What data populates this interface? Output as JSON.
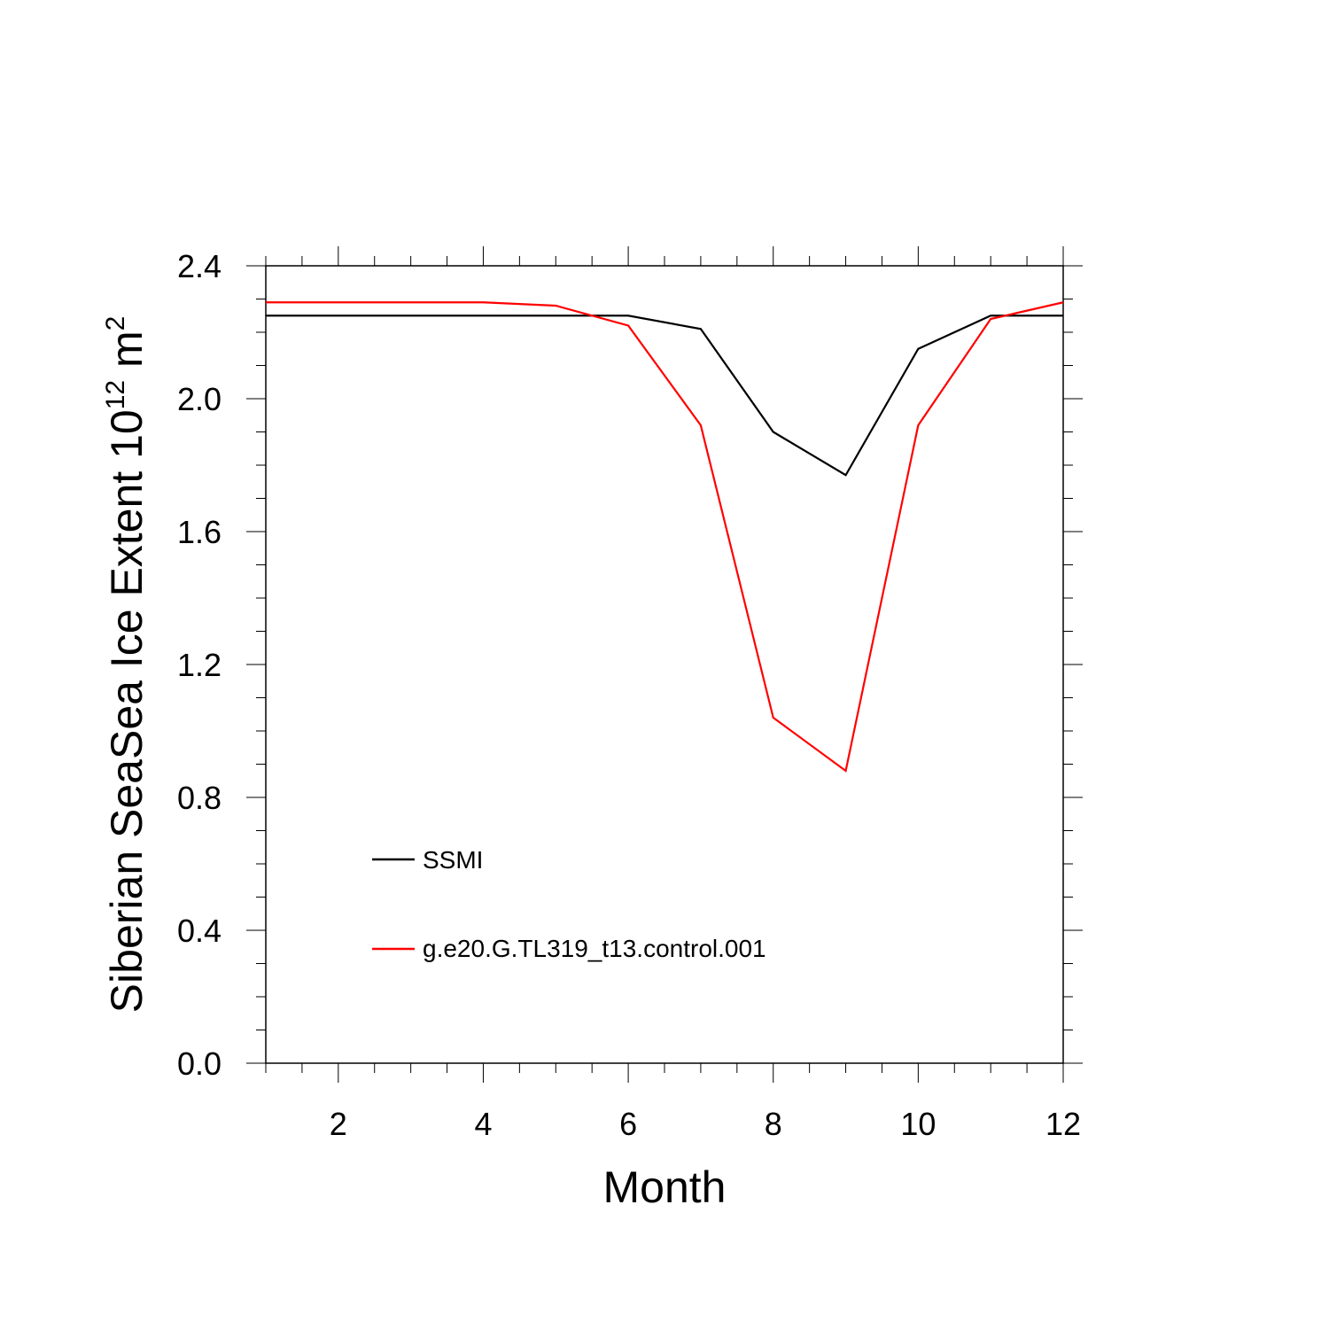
{
  "chart_data": {
    "type": "line",
    "xlabel": "Month",
    "ylabel": {
      "text": "Siberian SeaSea Ice Extent 10",
      "superscript": "12",
      "unit": " m",
      "unit_superscript": "2"
    },
    "xlim": [
      1,
      12
    ],
    "ylim": [
      0.0,
      2.4
    ],
    "xticks": [
      2,
      4,
      6,
      8,
      10,
      12
    ],
    "xtick_labels": [
      "2",
      "4",
      "6",
      "8",
      "10",
      "12"
    ],
    "yticks": [
      0.0,
      0.4,
      0.8,
      1.2,
      1.6,
      2.0,
      2.4
    ],
    "ytick_labels": [
      "0.0",
      "0.4",
      "0.8",
      "1.2",
      "1.6",
      "2.0",
      "2.4"
    ],
    "grid": false,
    "legend_position": "lower-left inside plot",
    "x": [
      1,
      2,
      3,
      4,
      5,
      6,
      7,
      8,
      9,
      10,
      11,
      12
    ],
    "series": [
      {
        "name": "SSMI",
        "color": "#000000",
        "values": [
          2.25,
          2.25,
          2.25,
          2.25,
          2.25,
          2.25,
          2.21,
          1.9,
          1.77,
          2.15,
          2.25,
          2.25
        ]
      },
      {
        "name": "g.e20.G.TL319_t13.control.001",
        "color": "#ff0000",
        "values": [
          2.29,
          2.29,
          2.29,
          2.29,
          2.28,
          2.22,
          1.92,
          1.04,
          0.88,
          1.92,
          2.24,
          2.29
        ]
      }
    ]
  }
}
